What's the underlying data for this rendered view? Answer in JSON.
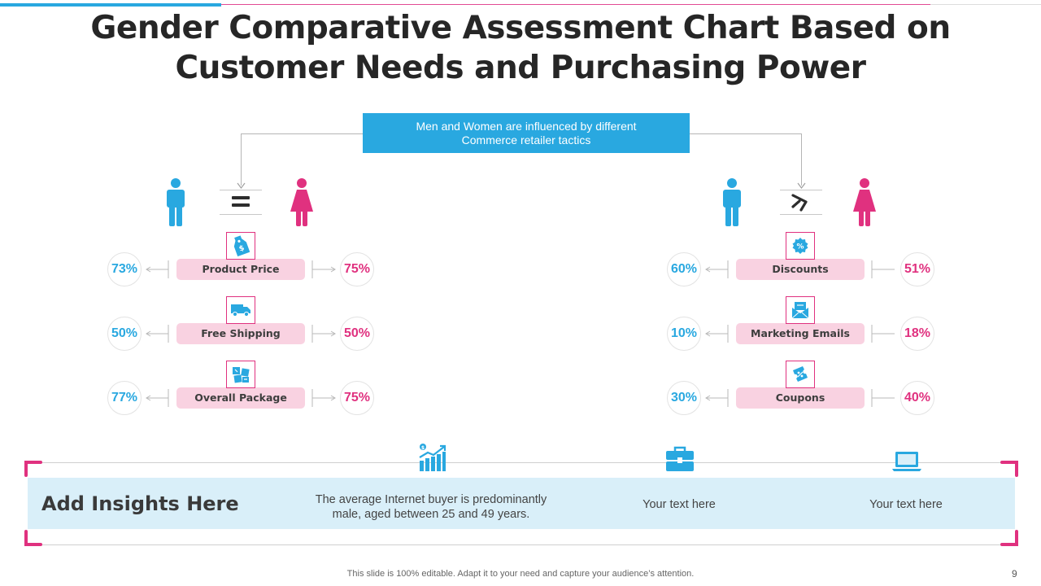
{
  "title": {
    "line1": "Gender Comparative Assessment Chart Based on",
    "line2": "Customer Needs and Purchasing Power"
  },
  "callout": "Men and Women are influenced by different Commerce retailer tactics",
  "colors": {
    "men": "#29a8e0",
    "women": "#e0317f",
    "pill": "#f9d2e1",
    "band": "#d9eff9"
  },
  "left_group": {
    "relation_symbol": "=",
    "items": [
      {
        "label": "Product Price",
        "icon": "price-tag-icon",
        "men": "73%",
        "women": "75%"
      },
      {
        "label": "Free Shipping",
        "icon": "delivery-truck-icon",
        "men": "50%",
        "women": "50%"
      },
      {
        "label": "Overall Package",
        "icon": "package-icon",
        "men": "77%",
        "women": "75%"
      }
    ]
  },
  "right_group": {
    "relation_symbol": "not-equal",
    "items": [
      {
        "label": "Discounts",
        "icon": "discount-badge-icon",
        "men": "60%",
        "women": "51%"
      },
      {
        "label": "Marketing Emails",
        "icon": "email-icon",
        "men": "10%",
        "women": "18%"
      },
      {
        "label": "Coupons",
        "icon": "coupon-icon",
        "men": "30%",
        "women": "40%"
      }
    ]
  },
  "insights": {
    "heading": "Add Insights Here",
    "col1": "The average Internet buyer is predominantly male, aged between 25 and 49 years.",
    "col2": "Your text here",
    "col3": "Your text here",
    "icons": [
      "growth-chart-icon",
      "briefcase-icon",
      "laptop-icon"
    ]
  },
  "footer": "This slide is 100% editable. Adapt it to your need and capture your audience’s attention.",
  "page_number": "9"
}
